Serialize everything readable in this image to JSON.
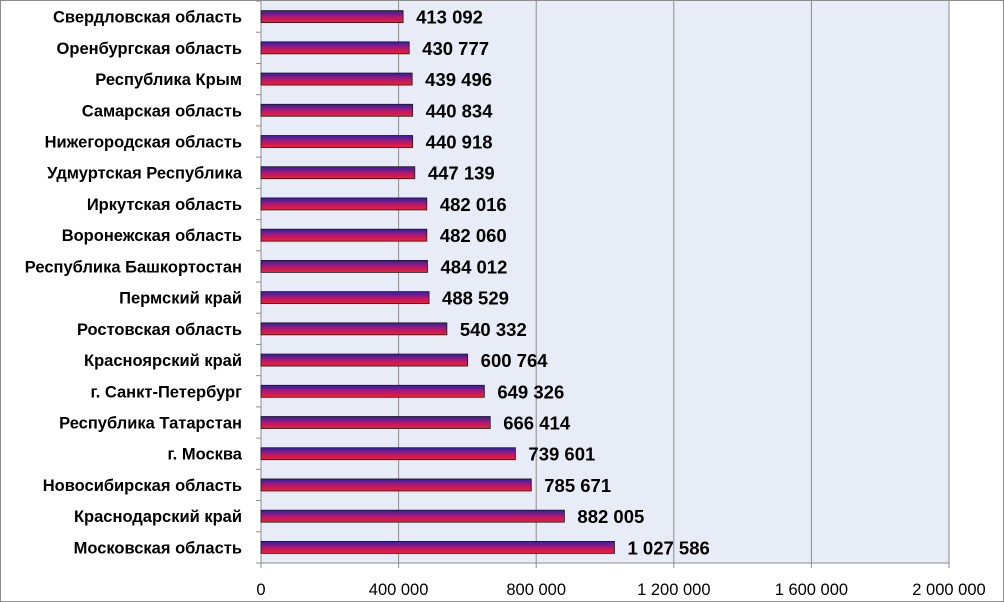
{
  "colors": {
    "plot_background": "#e8ecf6",
    "gridline": "#8c8c8c",
    "bar_top": "#2a1fa6",
    "bar_bottom": "#ff1a2a",
    "bar_outline": "#1a1a1a"
  },
  "chart_data": {
    "type": "bar",
    "orientation": "horizontal",
    "title": "",
    "xlabel": "",
    "ylabel": "",
    "xlim": [
      0,
      2000000
    ],
    "x_ticks": [
      0,
      400000,
      800000,
      1200000,
      1600000,
      2000000
    ],
    "x_tick_labels": [
      "0",
      "400 000",
      "800 000",
      "1 200 000",
      "1 600 000",
      "2 000 000"
    ],
    "grid": "vertical",
    "legend": "none",
    "categories": [
      "Свердловская область",
      "Оренбургская область",
      "Республика Крым",
      "Самарская область",
      "Нижегородская область",
      "Удмуртская Республика",
      "Иркутская область",
      "Воронежская область",
      "Республика Башкортостан",
      "Пермский край",
      "Ростовская область",
      "Красноярский край",
      "г. Санкт-Петербург",
      "Республика Татарстан",
      "г. Москва",
      "Новосибирская область",
      "Краснодарский край",
      "Московская область"
    ],
    "values": [
      413092,
      430777,
      439496,
      440834,
      440918,
      447139,
      482016,
      482060,
      484012,
      488529,
      540332,
      600764,
      649326,
      666414,
      739601,
      785671,
      882005,
      1027586
    ],
    "value_labels": [
      "413 092",
      "430 777",
      "439 496",
      "440 834",
      "440 918",
      "447 139",
      "482 016",
      "482 060",
      "484 012",
      "488 529",
      "540 332",
      "600 764",
      "649 326",
      "666 414",
      "739 601",
      "785 671",
      "882 005",
      "1 027 586"
    ]
  }
}
